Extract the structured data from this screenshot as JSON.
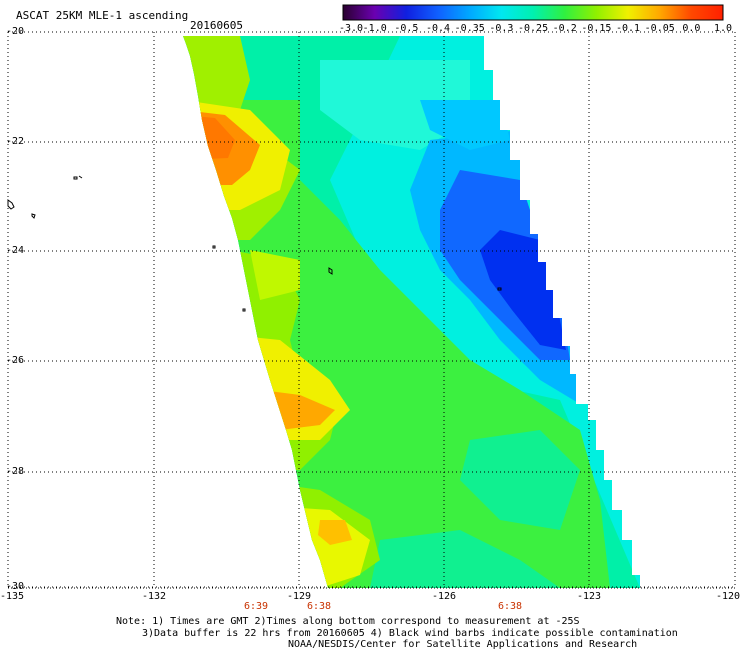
{
  "header": {
    "title": "ASCAT 25KM MLE-1 ascending",
    "date": "20160605"
  },
  "colorbar": {
    "labels": [
      "-3.0",
      "-1.0",
      "-0.5",
      "-0.4",
      "-0.35",
      "-0.3",
      "-0.25",
      "-0.2",
      "-0.15",
      "-0.1",
      "-0.05",
      "0.0",
      "1.0"
    ],
    "colors": [
      "#2a0030",
      "#6a00b0",
      "#1020e0",
      "#1060ff",
      "#00a8ff",
      "#00e8f0",
      "#00f0b0",
      "#30f040",
      "#90f000",
      "#f0f000",
      "#ffa800",
      "#ff4800",
      "#ff2000"
    ]
  },
  "axes": {
    "lon_labels": [
      "-135",
      "-132",
      "-129",
      "-126",
      "-123",
      "-120"
    ],
    "lat_labels": [
      "-20",
      "-22",
      "-24",
      "-26",
      "-28",
      "-30"
    ]
  },
  "times": [
    "6:39",
    "6:38",
    "6:38"
  ],
  "notes": {
    "line1": "Note: 1) Times are GMT 2)Times along bottom correspond to measurement at -25S",
    "line2": "3)Data buffer is 22 hrs from 20160605 4) Black wind barbs indicate possible contamination",
    "line3": "NOAA/NESDIS/Center for Satellite Applications and Research"
  }
}
